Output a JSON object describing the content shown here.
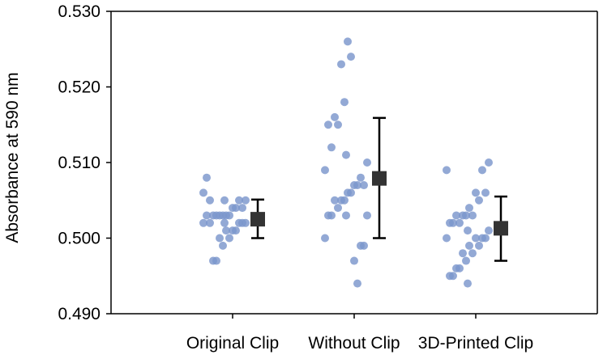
{
  "chart_data": {
    "type": "scatter",
    "title": "",
    "xlabel": "",
    "ylabel": "Absorbance at 590 nm",
    "ylim": [
      0.49,
      0.53
    ],
    "yticks": [
      "0.490",
      "0.500",
      "0.510",
      "0.520",
      "0.530"
    ],
    "categories": [
      "Original Clip",
      "Without Clip",
      "3D-Printed Clip"
    ],
    "grid": false,
    "legend": "none",
    "colors": {
      "points": "#7b96cc",
      "mean": "#333333",
      "error_bar": "#000000",
      "axis": "#000000"
    },
    "series": [
      {
        "category": "Original Clip",
        "values": [
          0.508,
          0.505,
          0.505,
          0.505,
          0.506,
          0.505,
          0.504,
          0.504,
          0.504,
          0.503,
          0.503,
          0.503,
          0.503,
          0.503,
          0.503,
          0.503,
          0.502,
          0.502,
          0.502,
          0.502,
          0.502,
          0.502,
          0.501,
          0.501,
          0.501,
          0.5,
          0.5,
          0.499,
          0.497,
          0.497
        ],
        "mean": 0.5025,
        "err_low": 0.5,
        "err_high": 0.5051
      },
      {
        "category": "Without Clip",
        "values": [
          0.526,
          0.524,
          0.523,
          0.518,
          0.516,
          0.515,
          0.515,
          0.512,
          0.511,
          0.51,
          0.509,
          0.508,
          0.507,
          0.507,
          0.507,
          0.506,
          0.506,
          0.505,
          0.505,
          0.505,
          0.504,
          0.503,
          0.503,
          0.503,
          0.503,
          0.5,
          0.499,
          0.499,
          0.497,
          0.494
        ],
        "mean": 0.5079,
        "err_low": 0.5,
        "err_high": 0.5159
      },
      {
        "category": "3D-Printed Clip",
        "values": [
          0.51,
          0.509,
          0.509,
          0.506,
          0.506,
          0.505,
          0.504,
          0.503,
          0.503,
          0.503,
          0.503,
          0.502,
          0.502,
          0.502,
          0.501,
          0.501,
          0.5,
          0.5,
          0.5,
          0.5,
          0.499,
          0.499,
          0.498,
          0.498,
          0.497,
          0.496,
          0.496,
          0.495,
          0.495,
          0.494
        ],
        "mean": 0.5013,
        "err_low": 0.497,
        "err_high": 0.5055
      }
    ]
  }
}
